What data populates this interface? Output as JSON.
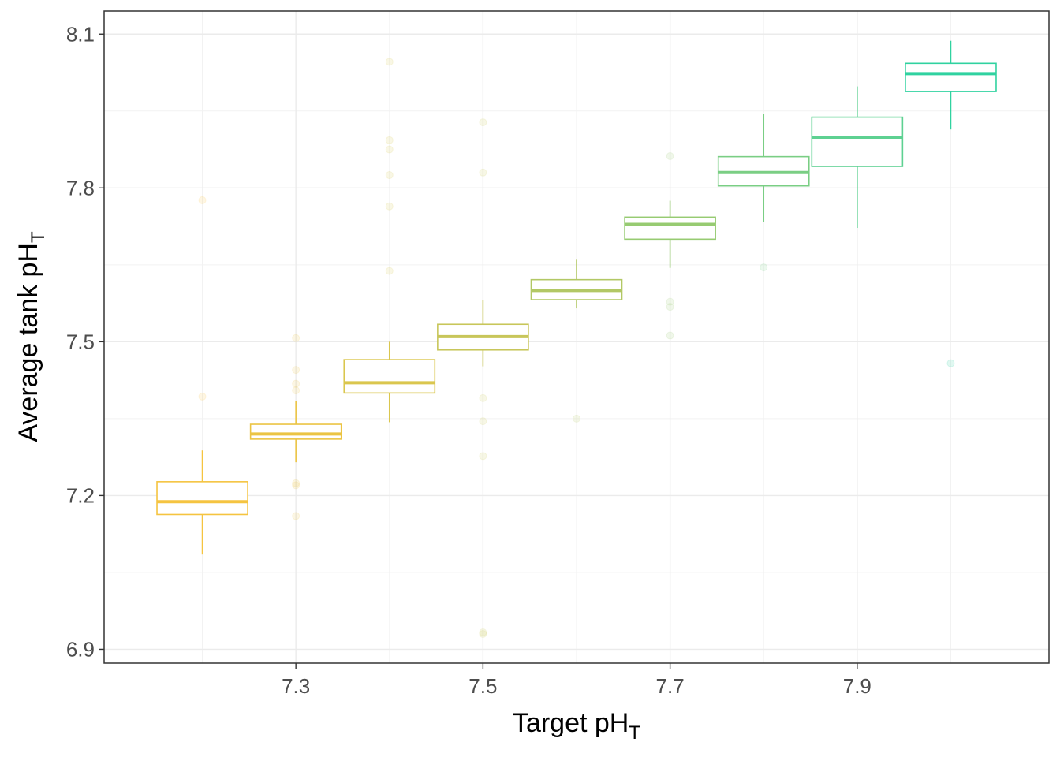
{
  "chart_data": {
    "type": "box",
    "xlabel": "Target pH",
    "xlabel_sub": "T",
    "ylabel": "Average tank pH",
    "ylabel_sub": "T",
    "x_ticks": [
      7.3,
      7.5,
      7.7,
      7.9
    ],
    "y_ticks": [
      6.9,
      7.2,
      7.5,
      7.8,
      8.1
    ],
    "xlim": [
      7.095,
      8.105
    ],
    "ylim": [
      6.873,
      8.145
    ],
    "grid": true,
    "outlier_opacity": 0.15,
    "boxes": [
      {
        "x": 7.2,
        "lower_whisker": 7.085,
        "q1": 7.163,
        "median": 7.188,
        "q3": 7.227,
        "upper_whisker": 7.288,
        "color": "#F5C440",
        "outliers": [
          7.393,
          7.776
        ]
      },
      {
        "x": 7.3,
        "lower_whisker": 7.265,
        "q1": 7.31,
        "median": 7.32,
        "q3": 7.339,
        "upper_whisker": 7.384,
        "color": "#EBC443",
        "outliers": [
          7.16,
          7.22,
          7.224,
          7.405,
          7.418,
          7.445,
          7.507
        ]
      },
      {
        "x": 7.4,
        "lower_whisker": 7.343,
        "q1": 7.4,
        "median": 7.42,
        "q3": 7.465,
        "upper_whisker": 7.5,
        "color": "#DAC64E",
        "outliers": [
          7.638,
          7.764,
          7.825,
          7.875,
          7.893,
          8.046
        ]
      },
      {
        "x": 7.5,
        "lower_whisker": 7.452,
        "q1": 7.484,
        "median": 7.51,
        "q3": 7.534,
        "upper_whisker": 7.582,
        "color": "#C8C65A",
        "outliers": [
          6.93,
          6.933,
          7.277,
          7.345,
          7.39,
          7.83,
          7.928
        ]
      },
      {
        "x": 7.6,
        "lower_whisker": 7.565,
        "q1": 7.582,
        "median": 7.6,
        "q3": 7.621,
        "upper_whisker": 7.66,
        "color": "#B2C865",
        "outliers": [
          7.35
        ]
      },
      {
        "x": 7.7,
        "lower_whisker": 7.644,
        "q1": 7.7,
        "median": 7.729,
        "q3": 7.743,
        "upper_whisker": 7.775,
        "color": "#97CB72",
        "outliers": [
          7.512,
          7.568,
          7.578,
          7.862
        ]
      },
      {
        "x": 7.8,
        "lower_whisker": 7.733,
        "q1": 7.804,
        "median": 7.83,
        "q3": 7.861,
        "upper_whisker": 7.944,
        "color": "#7ACE84",
        "outliers": [
          7.645
        ]
      },
      {
        "x": 7.9,
        "lower_whisker": 7.722,
        "q1": 7.842,
        "median": 7.899,
        "q3": 7.938,
        "upper_whisker": 7.998,
        "color": "#5ED192",
        "outliers": []
      },
      {
        "x": 8.0,
        "lower_whisker": 7.914,
        "q1": 7.988,
        "median": 8.023,
        "q3": 8.043,
        "upper_whisker": 8.087,
        "color": "#30D2A0",
        "outliers": [
          7.458
        ]
      }
    ]
  }
}
